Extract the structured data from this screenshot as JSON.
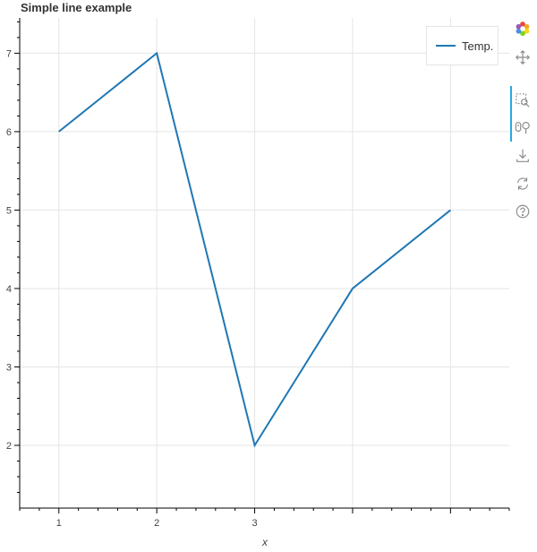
{
  "chart_data": {
    "type": "line",
    "title": "Simple line example",
    "xlabel": "x",
    "ylabel": "",
    "x": [
      1,
      2,
      3,
      4,
      5
    ],
    "series": [
      {
        "name": "Temp.",
        "values": [
          6,
          7,
          2,
          4,
          5
        ],
        "color": "#1f77b4"
      }
    ],
    "xlim": [
      0.6,
      5.6
    ],
    "ylim": [
      1.2,
      7.45
    ],
    "x_ticks": [
      1,
      2,
      3
    ],
    "y_ticks": [
      2,
      3,
      4,
      5,
      6,
      7
    ],
    "grid": true,
    "legend_position": "top-right"
  },
  "toolbar": {
    "tools": [
      {
        "icon": "bokeh-logo-icon",
        "active": false
      },
      {
        "icon": "pan-icon",
        "active": false
      },
      {
        "icon": "box-zoom-icon",
        "active": true
      },
      {
        "icon": "wheel-zoom-icon",
        "active": true
      },
      {
        "icon": "save-icon",
        "active": false
      },
      {
        "icon": "reset-icon",
        "active": false
      },
      {
        "icon": "help-icon",
        "active": false
      }
    ],
    "accent_color": "#26aae1"
  }
}
